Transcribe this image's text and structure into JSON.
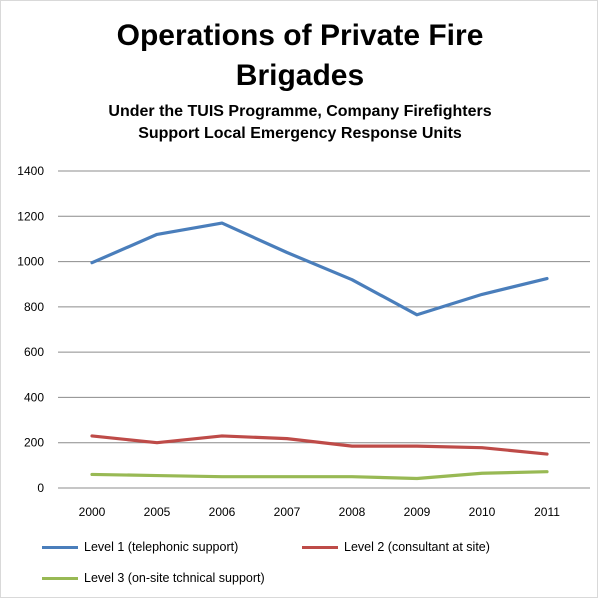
{
  "chart_data": {
    "type": "line",
    "title_lines": [
      "Operations of Private Fire",
      "Brigades"
    ],
    "subtitle_lines": [
      "Under the TUIS Programme, Company Firefighters",
      "Support Local Emergency Response Units"
    ],
    "categories": [
      "2000",
      "2005",
      "2006",
      "2007",
      "2008",
      "2009",
      "2010",
      "2011"
    ],
    "ylim": [
      0,
      1400
    ],
    "yticks": [
      0,
      200,
      400,
      600,
      800,
      1000,
      1200,
      1400
    ],
    "grid": true,
    "legend_position": "bottom",
    "series": [
      {
        "name": "Level 1 (telephonic support)",
        "color": "#4a7ebb",
        "values": [
          995,
          1120,
          1170,
          1040,
          920,
          765,
          855,
          925
        ]
      },
      {
        "name": "Level 2 (consultant at site)",
        "color": "#be4b48",
        "values": [
          230,
          200,
          230,
          218,
          185,
          185,
          178,
          150
        ]
      },
      {
        "name": "Level 3 (on-site tchnical support)",
        "color": "#98b954",
        "values": [
          60,
          55,
          50,
          50,
          50,
          42,
          65,
          72
        ]
      }
    ]
  }
}
